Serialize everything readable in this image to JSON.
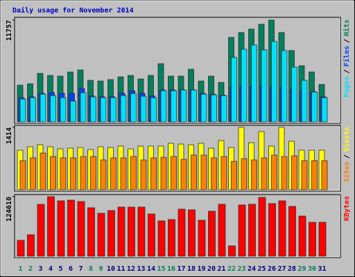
{
  "chart_data": [
    {
      "type": "bar",
      "title": "Daily usage for November 2014",
      "title_color": "#0000c0",
      "legend_separator": "/",
      "ylim": [
        0,
        11757
      ],
      "yticks": [
        11757
      ],
      "series": [
        {
          "name": "Hits",
          "color": "#00805c",
          "values": [
            4240,
            4400,
            5600,
            5360,
            5280,
            5760,
            6000,
            4800,
            4720,
            4880,
            5200,
            5360,
            4960,
            5360,
            6720,
            5280,
            5280,
            6080,
            4720,
            5280,
            4560,
            9760,
            10320,
            10720,
            11280,
            11757,
            10320,
            8240,
            6480,
            5760,
            4320
          ]
        },
        {
          "name": "Files",
          "color": "#0040ff",
          "values": [
            2800,
            2900,
            3300,
            3400,
            3300,
            3300,
            3840,
            3000,
            2900,
            2900,
            3300,
            3600,
            3300,
            3000,
            3700,
            3700,
            3700,
            3700,
            3300,
            3200,
            3100,
            4000,
            4100,
            4100,
            4200,
            4000,
            4000,
            3800,
            3600,
            3500,
            2900
          ]
        },
        {
          "name": "Pages",
          "color": "#00e0ff",
          "values": [
            2640,
            2800,
            3200,
            3040,
            2800,
            2400,
            3360,
            2880,
            2800,
            2800,
            3040,
            3280,
            2960,
            2800,
            3600,
            3600,
            3680,
            3680,
            3200,
            3120,
            3040,
            7440,
            8400,
            8880,
            8320,
            9280,
            8240,
            6320,
            4800,
            3440,
            2800
          ]
        }
      ]
    },
    {
      "type": "bar",
      "legend_separator": "/",
      "ylim": [
        0,
        1414
      ],
      "yticks": [
        1414
      ],
      "series": [
        {
          "name": "Visits",
          "color": "#ffff00",
          "values": [
            896,
            974,
            1021,
            974,
            927,
            943,
            958,
            911,
            974,
            958,
            990,
            927,
            990,
            990,
            990,
            1053,
            1037,
            1021,
            1053,
            943,
            1115,
            958,
            1414,
            1068,
            1320,
            990,
            1414,
            1100,
            896,
            896,
            896
          ]
        },
        {
          "name": "Sites",
          "color": "#ff8000",
          "values": [
            660,
            723,
            833,
            754,
            723,
            723,
            754,
            754,
            676,
            723,
            723,
            754,
            676,
            723,
            738,
            754,
            691,
            786,
            786,
            723,
            754,
            644,
            707,
            676,
            723,
            786,
            754,
            770,
            660,
            660,
            660
          ]
        }
      ]
    },
    {
      "type": "bar",
      "ylim": [
        0,
        124610
      ],
      "yticks": [
        124610
      ],
      "series": [
        {
          "name": "KBytes",
          "color": "#ff0000",
          "values": [
            33330,
            44920,
            108680,
            124610,
            115920,
            117370,
            114470,
            101430,
            89840,
            95630,
            102880,
            102880,
            102880,
            88390,
            73900,
            76800,
            98530,
            97080,
            75350,
            94190,
            108680,
            21740,
            107230,
            108680,
            123170,
            110120,
            115920,
            104330,
            84040,
            71000,
            71000
          ]
        }
      ],
      "categories": [
        "1",
        "2",
        "3",
        "4",
        "5",
        "6",
        "7",
        "8",
        "9",
        "10",
        "11",
        "12",
        "13",
        "14",
        "15",
        "16",
        "17",
        "18",
        "19",
        "20",
        "21",
        "22",
        "23",
        "24",
        "25",
        "26",
        "27",
        "28",
        "29",
        "30",
        "31"
      ],
      "category_colors": [
        "#00805c",
        "#00805c",
        "#000080",
        "#000080",
        "#000080",
        "#000080",
        "#000080",
        "#00805c",
        "#00805c",
        "#000080",
        "#000080",
        "#000080",
        "#000080",
        "#000080",
        "#00805c",
        "#00805c",
        "#000080",
        "#000080",
        "#000080",
        "#000080",
        "#000080",
        "#00805c",
        "#00805c",
        "#000080",
        "#000080",
        "#000080",
        "#000080",
        "#000080",
        "#00805c",
        "#00805c",
        "#000080"
      ]
    }
  ]
}
